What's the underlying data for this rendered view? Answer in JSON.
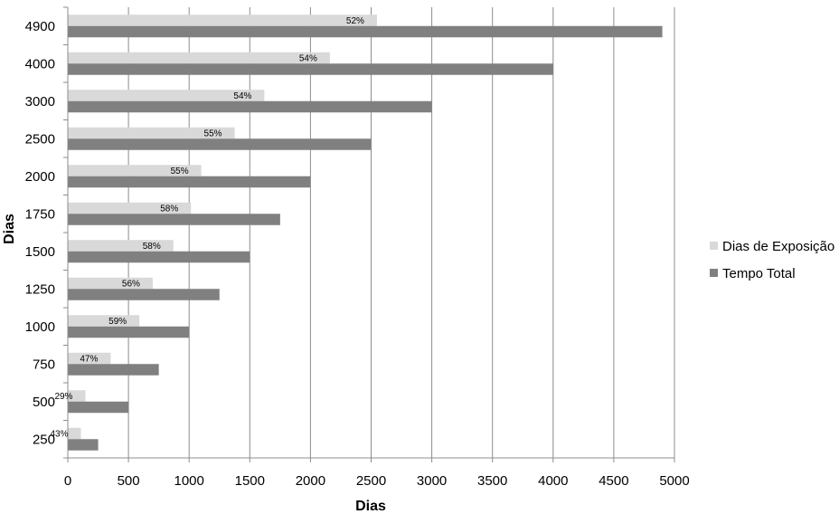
{
  "chart_data": {
    "type": "bar",
    "orientation": "horizontal",
    "categories": [
      "4900",
      "4000",
      "3000",
      "2500",
      "2000",
      "1750",
      "1500",
      "1250",
      "1000",
      "750",
      "500",
      "250"
    ],
    "series": [
      {
        "name": "Dias de Exposição",
        "color": "#d9d9d9",
        "values": [
          2548,
          2160,
          1620,
          1375,
          1100,
          1015,
          870,
          700,
          590,
          353,
          145,
          108
        ],
        "labels": [
          "52%",
          "54%",
          "54%",
          "55%",
          "55%",
          "58%",
          "58%",
          "56%",
          "59%",
          "47%",
          "29%",
          "43%"
        ]
      },
      {
        "name": "Tempo Total",
        "color": "#808080",
        "values": [
          4900,
          4000,
          3000,
          2500,
          2000,
          1750,
          1500,
          1250,
          1000,
          750,
          500,
          250
        ]
      }
    ],
    "xlabel": "Dias",
    "ylabel": "Dias",
    "xlim": [
      0,
      5000
    ],
    "xticks": [
      "0",
      "500",
      "1000",
      "1500",
      "2000",
      "2500",
      "3000",
      "3500",
      "4000",
      "4500",
      "5000"
    ],
    "grid": "vertical",
    "legend": "right"
  }
}
